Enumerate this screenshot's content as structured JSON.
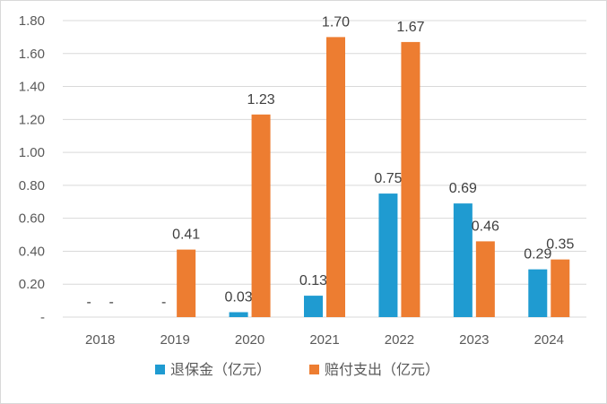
{
  "chart_data": {
    "type": "bar",
    "categories": [
      "2018",
      "2019",
      "2020",
      "2021",
      "2022",
      "2023",
      "2024"
    ],
    "y_ticks": [
      "-",
      "0.20",
      "0.40",
      "0.60",
      "0.80",
      "1.00",
      "1.20",
      "1.40",
      "1.60",
      "1.80"
    ],
    "ylim": [
      0,
      1.8
    ],
    "grid": true,
    "legend_position": "bottom",
    "series": [
      {
        "name": "退保金（亿元）",
        "color": "#1f9bd1",
        "values": [
          0,
          0,
          0.03,
          0.13,
          0.75,
          0.69,
          0.29
        ],
        "labels": [
          "-",
          "-",
          "0.03",
          "0.13",
          "0.75",
          "0.69",
          "0.29"
        ]
      },
      {
        "name": "赔付支出（亿元）",
        "color": "#ed7d31",
        "values": [
          0,
          0.41,
          1.23,
          1.7,
          1.67,
          0.46,
          0.35
        ],
        "labels": [
          "-",
          "0.41",
          "1.23",
          "1.70",
          "1.67",
          "0.46",
          "0.35"
        ]
      }
    ]
  }
}
